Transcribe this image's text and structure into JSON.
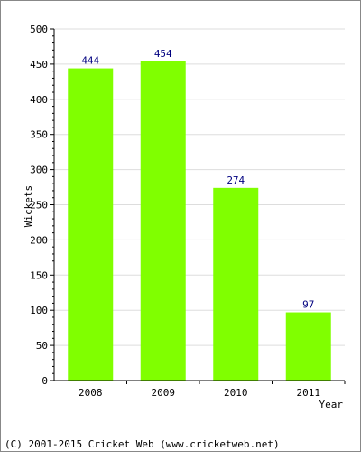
{
  "chart_data": {
    "type": "bar",
    "categories": [
      "2008",
      "2009",
      "2010",
      "2011"
    ],
    "values": [
      444,
      454,
      274,
      97
    ],
    "data_labels": [
      "444",
      "454",
      "274",
      "97"
    ],
    "xlabel": "Year",
    "ylabel": "Wickets",
    "ylim": [
      0,
      500
    ],
    "yticks": [
      "0",
      "50",
      "100",
      "150",
      "200",
      "250",
      "300",
      "350",
      "400",
      "450",
      "500"
    ],
    "grid": true,
    "bar_color": "#80ff00",
    "label_color": "#000080"
  },
  "footer": {
    "credit": "(C) 2001-2015 Cricket Web (www.cricketweb.net)"
  }
}
